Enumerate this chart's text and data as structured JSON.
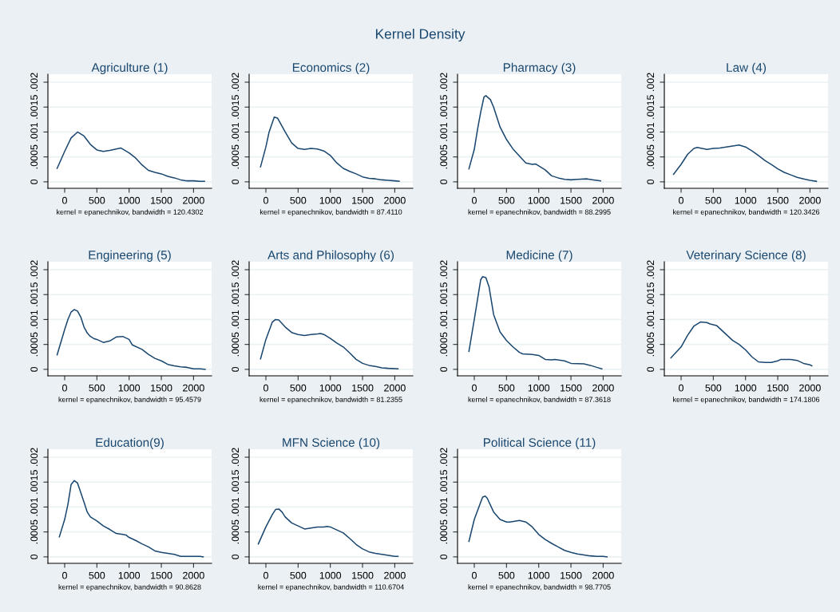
{
  "chart_data": [
    {
      "type": "other",
      "title": "Kernel Density"
    },
    {
      "type": "line",
      "title": "Agriculture (1)",
      "xlabel": "kernel = epanechnikov, bandwidth = 120.4302",
      "color": "#1a476f",
      "grid": "y",
      "marker": "none",
      "xlim": [
        -260,
        2280
      ],
      "ylim": [
        -0.00013,
        0.00216
      ],
      "xticks": [
        0,
        500,
        1000,
        1500,
        2000
      ],
      "yticks": [
        0,
        {
          "value": 0.0005,
          "label": ".0005"
        },
        {
          "value": 0.001,
          "label": ".001"
        },
        {
          "value": 0.0015,
          "label": ".0015"
        },
        {
          "value": 0.002,
          "label": ".002"
        }
      ],
      "x": [
        -117,
        0,
        100,
        200,
        300,
        400,
        500,
        600,
        700,
        870,
        1000,
        1100,
        1200,
        1300,
        1400,
        1500,
        1600,
        1700,
        1800,
        1900,
        2000,
        2100,
        2170
      ],
      "values": [
        0.00027,
        0.00061,
        0.00088,
        0.001,
        0.00092,
        0.00075,
        0.00064,
        0.00061,
        0.00063,
        0.00068,
        0.00058,
        0.00048,
        0.00034,
        0.00023,
        0.00019,
        0.00016,
        0.00011,
        8e-05,
        4e-05,
        2e-05,
        2e-05,
        1e-05,
        1e-05
      ]
    },
    {
      "type": "line",
      "title": "Economics (2)",
      "xlabel": "kernel = epanechnikov, bandwidth = 87.4110",
      "color": "#1a476f",
      "grid": "y",
      "marker": "none",
      "xlim": [
        -260,
        2280
      ],
      "ylim": [
        -0.00013,
        0.00216
      ],
      "xticks": [
        0,
        500,
        1000,
        1500,
        2000
      ],
      "yticks": [
        0,
        {
          "value": 0.0005,
          "label": ".0005"
        },
        {
          "value": 0.001,
          "label": ".001"
        },
        {
          "value": 0.0015,
          "label": ".0015"
        },
        {
          "value": 0.002,
          "label": ".002"
        }
      ],
      "x": [
        -83,
        0,
        50,
        130,
        180,
        300,
        400,
        500,
        600,
        700,
        800,
        900,
        1000,
        1100,
        1200,
        1300,
        1400,
        1500,
        1600,
        1700,
        1800,
        1900,
        2000,
        2070
      ],
      "values": [
        0.0003,
        0.0007,
        0.001,
        0.0013,
        0.00128,
        0.001,
        0.00078,
        0.00067,
        0.00065,
        0.00067,
        0.00066,
        0.00062,
        0.00053,
        0.00038,
        0.00027,
        0.00021,
        0.00016,
        0.0001,
        7e-05,
        6e-05,
        4e-05,
        3e-05,
        2e-05,
        1e-05
      ]
    },
    {
      "type": "line",
      "title": "Pharmacy (3)",
      "xlabel": "kernel = epanechnikov, bandwidth = 88.2995",
      "color": "#1a476f",
      "grid": "y",
      "marker": "none",
      "xlim": [
        -260,
        2280
      ],
      "ylim": [
        -0.00013,
        0.00216
      ],
      "xticks": [
        0,
        500,
        1000,
        1500,
        2000
      ],
      "yticks": [
        0,
        {
          "value": 0.0005,
          "label": ".0005"
        },
        {
          "value": 0.001,
          "label": ".001"
        },
        {
          "value": 0.0015,
          "label": ".0015"
        },
        {
          "value": 0.002,
          "label": ".002"
        }
      ],
      "x": [
        -83,
        0,
        50,
        100,
        150,
        180,
        250,
        300,
        400,
        500,
        600,
        700,
        800,
        900,
        950,
        1000,
        1100,
        1200,
        1300,
        1400,
        1500,
        1600,
        1750,
        1850,
        1960
      ],
      "values": [
        0.00026,
        0.00065,
        0.00105,
        0.0014,
        0.0017,
        0.00173,
        0.00165,
        0.0015,
        0.0011,
        0.00085,
        0.00066,
        0.00052,
        0.00038,
        0.00035,
        0.00036,
        0.00032,
        0.00024,
        0.00012,
        8e-05,
        5e-05,
        4e-05,
        5e-05,
        6e-05,
        4e-05,
        2e-05
      ]
    },
    {
      "type": "line",
      "title": "Law (4)",
      "xlabel": "kernel = epanechnikov, bandwidth = 120.3426",
      "color": "#1a476f",
      "grid": "y",
      "marker": "none",
      "xlim": [
        -260,
        2280
      ],
      "ylim": [
        -0.00013,
        0.00216
      ],
      "xticks": [
        0,
        500,
        1000,
        1500,
        2000
      ],
      "yticks": [
        0,
        {
          "value": 0.0005,
          "label": ".0005"
        },
        {
          "value": 0.001,
          "label": ".001"
        },
        {
          "value": 0.0015,
          "label": ".0015"
        },
        {
          "value": 0.002,
          "label": ".002"
        }
      ],
      "x": [
        -117,
        0,
        100,
        200,
        250,
        400,
        500,
        600,
        700,
        800,
        900,
        1000,
        1100,
        1200,
        1300,
        1400,
        1500,
        1600,
        1700,
        1800,
        1900,
        2000,
        2100
      ],
      "values": [
        0.00015,
        0.00035,
        0.00055,
        0.00067,
        0.00069,
        0.00065,
        0.00067,
        0.00068,
        0.0007,
        0.00072,
        0.00074,
        0.0007,
        0.00062,
        0.00053,
        0.00043,
        0.00035,
        0.00026,
        0.00019,
        0.00014,
        9e-05,
        6e-05,
        3e-05,
        1e-05
      ]
    },
    {
      "type": "line",
      "title": "Engineering (5)",
      "xlabel": "kernel = epanechnikov, bandwidth = 95.4579",
      "color": "#1a476f",
      "grid": "y",
      "marker": "none",
      "xlim": [
        -260,
        2280
      ],
      "ylim": [
        -0.00013,
        0.00216
      ],
      "xticks": [
        0,
        500,
        1000,
        1500,
        2000
      ],
      "yticks": [
        0,
        {
          "value": 0.0005,
          "label": ".0005"
        },
        {
          "value": 0.001,
          "label": ".001"
        },
        {
          "value": 0.0015,
          "label": ".0015"
        },
        {
          "value": 0.002,
          "label": ".002"
        }
      ],
      "x": [
        -117,
        0,
        50,
        100,
        150,
        200,
        250,
        300,
        350,
        400,
        450,
        500,
        600,
        700,
        800,
        900,
        1000,
        1050,
        1200,
        1300,
        1400,
        1500,
        1600,
        1700,
        1800,
        1900,
        2000,
        2100,
        2180
      ],
      "values": [
        0.00029,
        0.0008,
        0.001,
        0.00115,
        0.0012,
        0.00117,
        0.00105,
        0.00085,
        0.00073,
        0.00066,
        0.00062,
        0.0006,
        0.00054,
        0.00057,
        0.00065,
        0.00066,
        0.0006,
        0.00049,
        0.0004,
        0.0003,
        0.00022,
        0.00017,
        0.0001,
        7e-05,
        5e-05,
        4e-05,
        1e-05,
        1e-05,
        0
      ]
    },
    {
      "type": "line",
      "title": "Arts and Philosophy (6)",
      "xlabel": "kernel = epanechnikov, bandwidth = 81.2355",
      "color": "#1a476f",
      "grid": "y",
      "marker": "none",
      "xlim": [
        -260,
        2280
      ],
      "ylim": [
        -0.00013,
        0.00216
      ],
      "xticks": [
        0,
        500,
        1000,
        1500,
        2000
      ],
      "yticks": [
        0,
        {
          "value": 0.0005,
          "label": ".0005"
        },
        {
          "value": 0.001,
          "label": ".001"
        },
        {
          "value": 0.0015,
          "label": ".0015"
        },
        {
          "value": 0.002,
          "label": ".002"
        }
      ],
      "x": [
        -83,
        0,
        100,
        150,
        200,
        300,
        400,
        500,
        600,
        700,
        800,
        850,
        900,
        1000,
        1100,
        1200,
        1300,
        1400,
        1500,
        1600,
        1700,
        1800,
        1900,
        2050
      ],
      "values": [
        0.00021,
        0.0006,
        0.00095,
        0.001,
        0.00099,
        0.00085,
        0.00074,
        0.0007,
        0.00068,
        0.0007,
        0.00071,
        0.00072,
        0.0007,
        0.00062,
        0.00053,
        0.00045,
        0.00033,
        0.0002,
        0.00012,
        8e-05,
        6e-05,
        3e-05,
        2e-05,
        1e-05
      ]
    },
    {
      "type": "line",
      "title": "Medicine (7)",
      "xlabel": "kernel = epanechnikov, bandwidth = 87.3618",
      "color": "#1a476f",
      "grid": "y",
      "marker": "none",
      "xlim": [
        -260,
        2280
      ],
      "ylim": [
        -0.00013,
        0.00216
      ],
      "xticks": [
        0,
        500,
        1000,
        1500,
        2000
      ],
      "yticks": [
        0,
        {
          "value": 0.0005,
          "label": ".0005"
        },
        {
          "value": 0.001,
          "label": ".001"
        },
        {
          "value": 0.0015,
          "label": ".0015"
        },
        {
          "value": 0.002,
          "label": ".002"
        }
      ],
      "x": [
        -83,
        0,
        50,
        100,
        130,
        180,
        230,
        300,
        400,
        500,
        600,
        700,
        750,
        900,
        1000,
        1100,
        1200,
        1250,
        1400,
        1500,
        1700,
        1800,
        1900,
        1980
      ],
      "values": [
        0.00036,
        0.001,
        0.0014,
        0.0018,
        0.00186,
        0.00184,
        0.00165,
        0.0011,
        0.00075,
        0.00058,
        0.00045,
        0.00034,
        0.00031,
        0.0003,
        0.00028,
        0.0002,
        0.00019,
        0.0002,
        0.00017,
        0.00012,
        0.00011,
        8e-05,
        4e-05,
        1e-05
      ]
    },
    {
      "type": "line",
      "title": "Veterinary Science (8)",
      "xlabel": "kernel = epanechnikov, bandwidth = 174.1806",
      "color": "#1a476f",
      "grid": "y",
      "marker": "none",
      "xlim": [
        -260,
        2280
      ],
      "ylim": [
        -0.00013,
        0.00216
      ],
      "xticks": [
        0,
        500,
        1000,
        1500,
        2000
      ],
      "yticks": [
        0,
        {
          "value": 0.0005,
          "label": ".0005"
        },
        {
          "value": 0.001,
          "label": ".001"
        },
        {
          "value": 0.0015,
          "label": ".0015"
        },
        {
          "value": 0.002,
          "label": ".002"
        }
      ],
      "x": [
        -158,
        0,
        100,
        200,
        300,
        400,
        450,
        550,
        700,
        800,
        900,
        1000,
        1100,
        1200,
        1300,
        1400,
        1500,
        1550,
        1700,
        1800,
        1900,
        2000,
        2030
      ],
      "values": [
        0.00023,
        0.00045,
        0.00068,
        0.00087,
        0.00095,
        0.00094,
        0.00091,
        0.00088,
        0.0007,
        0.00058,
        0.0005,
        0.00039,
        0.00025,
        0.00015,
        0.00014,
        0.00014,
        0.00017,
        0.0002,
        0.0002,
        0.00018,
        0.00012,
        9e-05,
        7e-05
      ]
    },
    {
      "type": "line",
      "title": "Education(9)",
      "xlabel": "kernel = epanechnikov, bandwidth = 90.8628",
      "color": "#1a476f",
      "grid": "y",
      "marker": "none",
      "xlim": [
        -260,
        2280
      ],
      "ylim": [
        -0.00013,
        0.00216
      ],
      "xticks": [
        0,
        500,
        1000,
        1500,
        2000
      ],
      "yticks": [
        0,
        {
          "value": 0.0005,
          "label": ".0005"
        },
        {
          "value": 0.001,
          "label": ".001"
        },
        {
          "value": 0.0015,
          "label": ".0015"
        },
        {
          "value": 0.002,
          "label": ".002"
        }
      ],
      "x": [
        -83,
        0,
        50,
        100,
        150,
        200,
        300,
        350,
        400,
        500,
        600,
        700,
        800,
        900,
        950,
        1000,
        1100,
        1200,
        1300,
        1400,
        1500,
        1600,
        1700,
        1800,
        1900,
        2100,
        2150
      ],
      "values": [
        0.0004,
        0.00075,
        0.00105,
        0.00145,
        0.00153,
        0.00148,
        0.0011,
        0.0009,
        0.0008,
        0.00072,
        0.00062,
        0.00055,
        0.00047,
        0.00045,
        0.00044,
        0.00039,
        0.00033,
        0.00026,
        0.0002,
        0.00012,
        9e-05,
        7e-05,
        5e-05,
        1e-05,
        1e-05,
        1e-05,
        0
      ]
    },
    {
      "type": "line",
      "title": "MFN Science (10)",
      "xlabel": "kernel = epanechnikov, bandwidth = 110.6704",
      "color": "#1a476f",
      "grid": "y",
      "marker": "none",
      "xlim": [
        -260,
        2280
      ],
      "ylim": [
        -0.00013,
        0.00216
      ],
      "xticks": [
        0,
        500,
        1000,
        1500,
        2000
      ],
      "yticks": [
        0,
        {
          "value": 0.0005,
          "label": ".0005"
        },
        {
          "value": 0.001,
          "label": ".001"
        },
        {
          "value": 0.0015,
          "label": ".0015"
        },
        {
          "value": 0.002,
          "label": ".002"
        }
      ],
      "x": [
        -117,
        0,
        100,
        150,
        200,
        250,
        300,
        400,
        500,
        600,
        700,
        800,
        900,
        950,
        1000,
        1100,
        1200,
        1300,
        1400,
        1500,
        1600,
        1700,
        1800,
        1900,
        2000,
        2050
      ],
      "values": [
        0.00026,
        0.0006,
        0.00085,
        0.00095,
        0.00096,
        0.0009,
        0.0008,
        0.00068,
        0.00062,
        0.00056,
        0.00058,
        0.0006,
        0.0006,
        0.00061,
        0.0006,
        0.00054,
        0.00048,
        0.00037,
        0.00025,
        0.00016,
        0.0001,
        7e-05,
        5e-05,
        3e-05,
        1e-05,
        1e-05
      ]
    },
    {
      "type": "line",
      "title": "Political Science (11)",
      "xlabel": "kernel = epanechnikov, bandwidth = 98.7705",
      "color": "#1a476f",
      "grid": "y",
      "marker": "none",
      "xlim": [
        -260,
        2280
      ],
      "ylim": [
        -0.00013,
        0.00216
      ],
      "xticks": [
        0,
        500,
        1000,
        1500,
        2000
      ],
      "yticks": [
        0,
        {
          "value": 0.0005,
          "label": ".0005"
        },
        {
          "value": 0.001,
          "label": ".001"
        },
        {
          "value": 0.0015,
          "label": ".0015"
        },
        {
          "value": 0.002,
          "label": ".002"
        }
      ],
      "x": [
        -83,
        0,
        100,
        130,
        170,
        200,
        300,
        400,
        500,
        550,
        650,
        700,
        800,
        900,
        1000,
        1100,
        1200,
        1300,
        1400,
        1500,
        1600,
        1700,
        1800,
        1900,
        2000,
        2060
      ],
      "values": [
        0.00031,
        0.00075,
        0.0011,
        0.0012,
        0.00122,
        0.00118,
        0.0009,
        0.00075,
        0.0007,
        0.0007,
        0.00072,
        0.00073,
        0.0007,
        0.0006,
        0.00045,
        0.00035,
        0.00027,
        0.0002,
        0.00013,
        9e-05,
        6e-05,
        4e-05,
        2e-05,
        1e-05,
        1e-05,
        0
      ]
    }
  ]
}
